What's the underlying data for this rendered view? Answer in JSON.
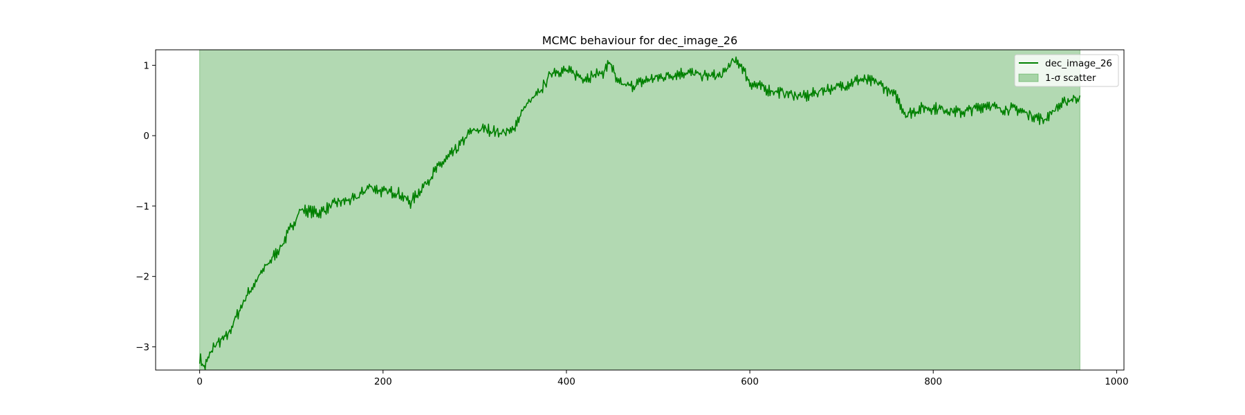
{
  "chart_data": {
    "type": "line",
    "title": "MCMC behaviour for dec_image_26",
    "xlabel": "",
    "ylabel": "",
    "xlim": [
      -48,
      1008
    ],
    "ylim": [
      -3.33,
      1.22
    ],
    "xticks": [
      0,
      200,
      400,
      600,
      800,
      1000
    ],
    "xtick_labels": [
      "0",
      "200",
      "400",
      "600",
      "800",
      "1000"
    ],
    "yticks": [
      -3,
      -2,
      -1,
      0,
      1
    ],
    "ytick_labels": [
      "−3",
      "−2",
      "−1",
      "0",
      "1"
    ],
    "grid": false,
    "legend_position": "top-right",
    "series": [
      {
        "name": "dec_image_26",
        "kind": "line",
        "color": "#008000",
        "noise": 0.06,
        "keypoints": [
          [
            0,
            -3.15
          ],
          [
            5,
            -3.3
          ],
          [
            15,
            -3.0
          ],
          [
            30,
            -2.85
          ],
          [
            50,
            -2.3
          ],
          [
            70,
            -1.9
          ],
          [
            90,
            -1.55
          ],
          [
            110,
            -1.05
          ],
          [
            130,
            -1.1
          ],
          [
            150,
            -0.95
          ],
          [
            170,
            -0.9
          ],
          [
            185,
            -0.72
          ],
          [
            200,
            -0.8
          ],
          [
            215,
            -0.8
          ],
          [
            230,
            -0.95
          ],
          [
            245,
            -0.7
          ],
          [
            260,
            -0.45
          ],
          [
            280,
            -0.2
          ],
          [
            295,
            0.05
          ],
          [
            310,
            0.1
          ],
          [
            325,
            0.05
          ],
          [
            340,
            0.05
          ],
          [
            355,
            0.42
          ],
          [
            370,
            0.6
          ],
          [
            385,
            0.92
          ],
          [
            400,
            0.92
          ],
          [
            420,
            0.82
          ],
          [
            440,
            0.9
          ],
          [
            448,
            1.05
          ],
          [
            455,
            0.75
          ],
          [
            470,
            0.7
          ],
          [
            490,
            0.8
          ],
          [
            510,
            0.85
          ],
          [
            530,
            0.9
          ],
          [
            550,
            0.85
          ],
          [
            570,
            0.85
          ],
          [
            580,
            1.05
          ],
          [
            590,
            1.02
          ],
          [
            600,
            0.75
          ],
          [
            620,
            0.65
          ],
          [
            640,
            0.6
          ],
          [
            660,
            0.55
          ],
          [
            680,
            0.65
          ],
          [
            700,
            0.7
          ],
          [
            720,
            0.8
          ],
          [
            740,
            0.75
          ],
          [
            760,
            0.55
          ],
          [
            770,
            0.3
          ],
          [
            790,
            0.4
          ],
          [
            810,
            0.38
          ],
          [
            830,
            0.33
          ],
          [
            850,
            0.4
          ],
          [
            860,
            0.45
          ],
          [
            870,
            0.38
          ],
          [
            890,
            0.38
          ],
          [
            910,
            0.28
          ],
          [
            920,
            0.22
          ],
          [
            935,
            0.4
          ],
          [
            950,
            0.52
          ],
          [
            960,
            0.55
          ]
        ]
      },
      {
        "name": "1-σ scatter",
        "kind": "band",
        "x_range": [
          0,
          960
        ],
        "y_range": [
          -3.33,
          1.22
        ],
        "color": "#008000",
        "alpha": 0.3
      }
    ]
  }
}
